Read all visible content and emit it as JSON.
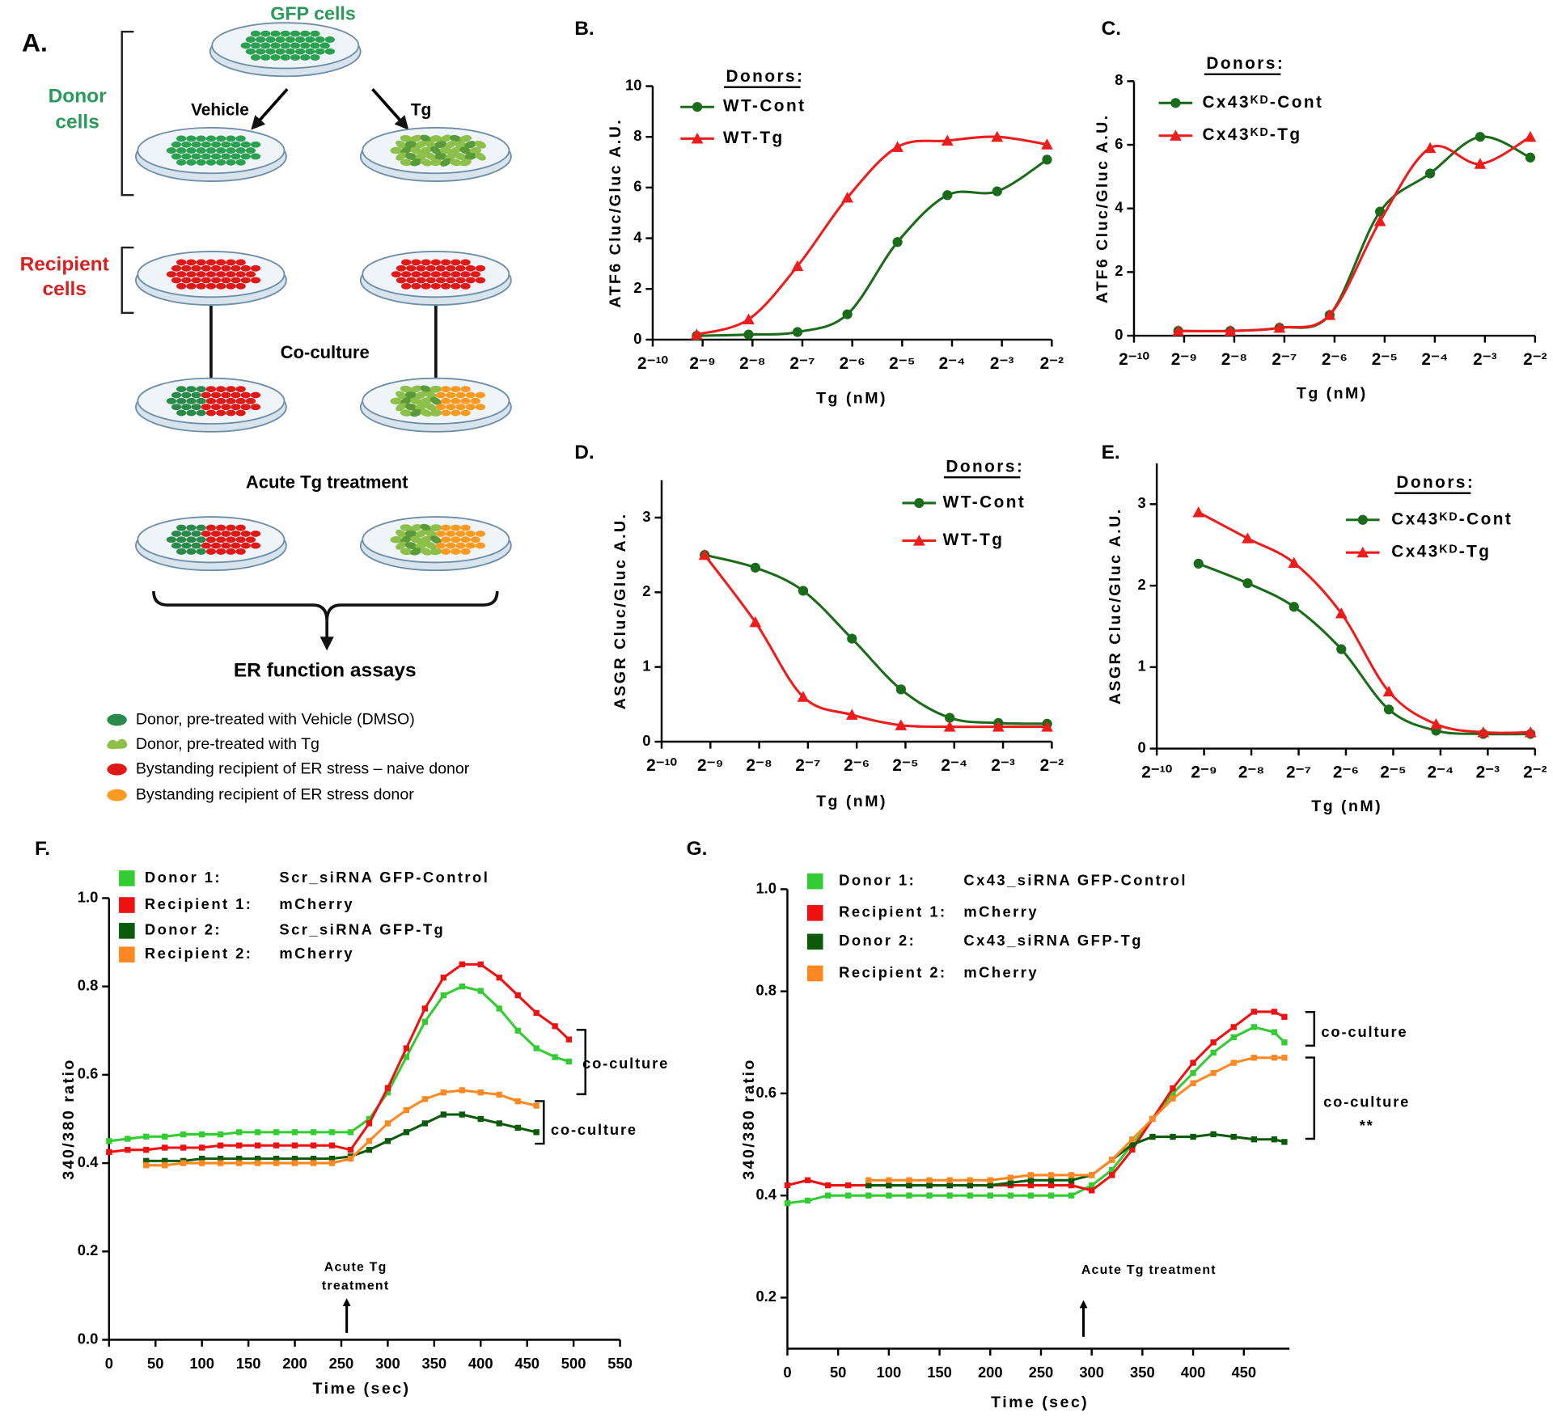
{
  "panel_a": {
    "label": "A.",
    "title": "GFP cells",
    "donor_label": [
      "Donor",
      "cells"
    ],
    "arrows": [
      "Vehicle",
      "Tg"
    ],
    "recipient_label": [
      "Recipient",
      "cells"
    ],
    "steps": [
      "Co-culture",
      "Acute Tg treatment",
      "ER function assays"
    ],
    "legend": [
      "Donor, pre-treated with Vehicle (DMSO)",
      "Donor, pre-treated with Tg",
      "Bystanding recipient of ER stress – naive donor",
      "Bystanding recipient of ER stress donor"
    ]
  },
  "chart_data": [
    {
      "type": "scatter",
      "panel": "B.",
      "curve": "smooth",
      "xscale": "log2",
      "xlabel": "Tg (nM)",
      "ylabel": "ATF6 Cluc/Gluc A.U.",
      "legend_title": "Donors:",
      "xlim": [
        0.0009765625,
        0.25
      ],
      "xticks": [
        {
          "value": 0.0009765625,
          "label": "2⁻¹⁰"
        },
        {
          "value": 0.001953125,
          "label": "2⁻⁹"
        },
        {
          "value": 0.00390625,
          "label": "2⁻⁸"
        },
        {
          "value": 0.0078125,
          "label": "2⁻⁷"
        },
        {
          "value": 0.015625,
          "label": "2⁻⁶"
        },
        {
          "value": 0.03125,
          "label": "2⁻⁵"
        },
        {
          "value": 0.0625,
          "label": "2⁻⁴"
        },
        {
          "value": 0.125,
          "label": "2⁻³"
        },
        {
          "value": 0.25,
          "label": "2⁻²"
        }
      ],
      "ylim": [
        0,
        10
      ],
      "yticks": [
        0,
        2,
        4,
        6,
        8,
        10
      ],
      "x": [
        0.0018,
        0.0037,
        0.0073,
        0.0146,
        0.0293,
        0.0586,
        0.117,
        0.234
      ],
      "series": [
        {
          "name": "WT-Cont",
          "color": "#1a6b1a",
          "marker": "circle",
          "values": [
            0.15,
            0.2,
            0.3,
            1.0,
            3.85,
            5.7,
            5.85,
            7.1
          ]
        },
        {
          "name": "WT-Tg",
          "color": "#ee1c1c",
          "marker": "triangle",
          "values": [
            0.2,
            0.8,
            2.9,
            5.6,
            7.6,
            7.85,
            8.0,
            7.7
          ]
        }
      ]
    },
    {
      "type": "scatter",
      "panel": "C.",
      "curve": "smooth",
      "xscale": "log2",
      "xlabel": "Tg (nM)",
      "ylabel": "ATF6 Cluc/Gluc A.U.",
      "legend_title": "Donors:",
      "xlim": [
        0.0009765625,
        0.25
      ],
      "xticks": [
        {
          "value": 0.0009765625,
          "label": "2⁻¹⁰"
        },
        {
          "value": 0.001953125,
          "label": "2⁻⁹"
        },
        {
          "value": 0.00390625,
          "label": "2⁻⁸"
        },
        {
          "value": 0.0078125,
          "label": "2⁻⁷"
        },
        {
          "value": 0.015625,
          "label": "2⁻⁶"
        },
        {
          "value": 0.03125,
          "label": "2⁻⁵"
        },
        {
          "value": 0.0625,
          "label": "2⁻⁴"
        },
        {
          "value": 0.125,
          "label": "2⁻³"
        },
        {
          "value": 0.25,
          "label": "2⁻²"
        }
      ],
      "ylim": [
        0,
        8
      ],
      "yticks": [
        0,
        2,
        4,
        6,
        8
      ],
      "x": [
        0.0018,
        0.0037,
        0.0073,
        0.0146,
        0.0293,
        0.0586,
        0.117,
        0.234
      ],
      "series": [
        {
          "name": "Cx43ᴷᴰ-Cont",
          "color": "#1a6b1a",
          "marker": "circle",
          "values": [
            0.15,
            0.15,
            0.25,
            0.65,
            3.9,
            5.1,
            6.25,
            5.6
          ]
        },
        {
          "name": "Cx43ᴷᴰ-Tg",
          "color": "#ee1c1c",
          "marker": "triangle",
          "values": [
            0.15,
            0.15,
            0.25,
            0.65,
            3.6,
            5.9,
            5.4,
            6.25
          ]
        }
      ]
    },
    {
      "type": "scatter",
      "panel": "D.",
      "curve": "smooth",
      "xscale": "log2",
      "xlabel": "Tg (nM)",
      "ylabel": "ASGR Cluc/Gluc A.U.",
      "legend_title": "Donors:",
      "xlim": [
        0.0009765625,
        0.25
      ],
      "xticks": [
        {
          "value": 0.0009765625,
          "label": "2⁻¹⁰"
        },
        {
          "value": 0.001953125,
          "label": "2⁻⁹"
        },
        {
          "value": 0.00390625,
          "label": "2⁻⁸"
        },
        {
          "value": 0.0078125,
          "label": "2⁻⁷"
        },
        {
          "value": 0.015625,
          "label": "2⁻⁶"
        },
        {
          "value": 0.03125,
          "label": "2⁻⁵"
        },
        {
          "value": 0.0625,
          "label": "2⁻⁴"
        },
        {
          "value": 0.125,
          "label": "2⁻³"
        },
        {
          "value": 0.25,
          "label": "2⁻²"
        }
      ],
      "ylim": [
        0,
        3.5
      ],
      "yticks": [
        0,
        1,
        2,
        3
      ],
      "x": [
        0.0018,
        0.0037,
        0.0073,
        0.0146,
        0.0293,
        0.0586,
        0.117,
        0.234
      ],
      "series": [
        {
          "name": "WT-Cont",
          "color": "#1a6b1a",
          "marker": "circle",
          "values": [
            2.5,
            2.33,
            2.02,
            1.38,
            0.7,
            0.32,
            0.25,
            0.24
          ]
        },
        {
          "name": "WT-Tg",
          "color": "#ee1c1c",
          "marker": "triangle",
          "values": [
            2.5,
            1.6,
            0.6,
            0.36,
            0.22,
            0.2,
            0.2,
            0.2
          ]
        }
      ]
    },
    {
      "type": "scatter",
      "panel": "E.",
      "curve": "smooth",
      "xscale": "log2",
      "xlabel": "Tg (nM)",
      "ylabel": "ASGR Cluc/Gluc A.U.",
      "legend_title": "Donors:",
      "xlim": [
        0.0009765625,
        0.25
      ],
      "xticks": [
        {
          "value": 0.0009765625,
          "label": "2⁻¹⁰"
        },
        {
          "value": 0.001953125,
          "label": "2⁻⁹"
        },
        {
          "value": 0.00390625,
          "label": "2⁻⁸"
        },
        {
          "value": 0.0078125,
          "label": "2⁻⁷"
        },
        {
          "value": 0.015625,
          "label": "2⁻⁶"
        },
        {
          "value": 0.03125,
          "label": "2⁻⁵"
        },
        {
          "value": 0.0625,
          "label": "2⁻⁴"
        },
        {
          "value": 0.125,
          "label": "2⁻³"
        },
        {
          "value": 0.25,
          "label": "2⁻²"
        }
      ],
      "ylim": [
        0,
        3.5
      ],
      "yticks": [
        0,
        1,
        2,
        3
      ],
      "x": [
        0.0018,
        0.0037,
        0.0073,
        0.0146,
        0.0293,
        0.0586,
        0.117,
        0.234
      ],
      "series": [
        {
          "name": "Cx43ᴷᴰ-Cont",
          "color": "#1a6b1a",
          "marker": "circle",
          "values": [
            2.27,
            2.03,
            1.74,
            1.22,
            0.48,
            0.22,
            0.18,
            0.18
          ]
        },
        {
          "name": "Cx43ᴷᴰ-Tg",
          "color": "#ee1c1c",
          "marker": "triangle",
          "values": [
            2.9,
            2.58,
            2.28,
            1.66,
            0.7,
            0.3,
            0.2,
            0.2
          ]
        }
      ]
    },
    {
      "type": "line",
      "panel": "F.",
      "xlabel": "Time (sec)",
      "ylabel": "340/380 ratio",
      "xlim": [
        0,
        550
      ],
      "xticks": [
        0,
        50,
        100,
        150,
        200,
        250,
        300,
        350,
        400,
        450,
        500,
        550
      ],
      "ylim": [
        0,
        1
      ],
      "yticks": [
        {
          "value": 0,
          "label": "0.0"
        },
        0.2,
        0.4,
        0.6,
        0.8,
        {
          "value": 1,
          "label": "1.0"
        }
      ],
      "series": [
        {
          "name": "Donor 1:",
          "description": "Scr_siRNA GFP-Control",
          "color": "#33cc33",
          "x": [
            0,
            20,
            40,
            60,
            80,
            100,
            120,
            140,
            160,
            180,
            200,
            220,
            240,
            260,
            280,
            300,
            320,
            340,
            360,
            380,
            400,
            420,
            440,
            460,
            480,
            495
          ],
          "values": [
            0.45,
            0.455,
            0.46,
            0.46,
            0.465,
            0.465,
            0.465,
            0.47,
            0.47,
            0.47,
            0.47,
            0.47,
            0.47,
            0.47,
            0.5,
            0.56,
            0.64,
            0.72,
            0.78,
            0.8,
            0.79,
            0.75,
            0.7,
            0.66,
            0.64,
            0.63
          ]
        },
        {
          "name": "Recipient 1:",
          "description": "mCherry",
          "color": "#ee1111",
          "x": [
            0,
            20,
            40,
            60,
            80,
            100,
            120,
            140,
            160,
            180,
            200,
            220,
            240,
            260,
            280,
            300,
            320,
            340,
            360,
            380,
            400,
            420,
            440,
            460,
            480,
            495
          ],
          "values": [
            0.425,
            0.43,
            0.43,
            0.435,
            0.435,
            0.435,
            0.44,
            0.44,
            0.44,
            0.44,
            0.44,
            0.44,
            0.44,
            0.43,
            0.49,
            0.57,
            0.66,
            0.75,
            0.82,
            0.85,
            0.85,
            0.82,
            0.78,
            0.74,
            0.71,
            0.68
          ]
        },
        {
          "name": "Donor 2:",
          "description": "Scr_siRNA GFP-Tg",
          "color": "#0a5a0a",
          "x": [
            40,
            60,
            80,
            100,
            120,
            140,
            160,
            180,
            200,
            220,
            240,
            260,
            280,
            300,
            320,
            340,
            360,
            380,
            400,
            420,
            440,
            460
          ],
          "values": [
            0.405,
            0.405,
            0.405,
            0.41,
            0.41,
            0.41,
            0.41,
            0.41,
            0.41,
            0.41,
            0.41,
            0.415,
            0.43,
            0.45,
            0.47,
            0.49,
            0.51,
            0.51,
            0.5,
            0.49,
            0.48,
            0.47
          ]
        },
        {
          "name": "Recipient 2:",
          "description": "mCherry",
          "color": "#ff8822",
          "x": [
            40,
            60,
            80,
            100,
            120,
            140,
            160,
            180,
            200,
            220,
            240,
            260,
            280,
            300,
            320,
            340,
            360,
            380,
            400,
            420,
            440,
            460
          ],
          "values": [
            0.395,
            0.395,
            0.4,
            0.4,
            0.4,
            0.4,
            0.4,
            0.4,
            0.4,
            0.4,
            0.4,
            0.41,
            0.45,
            0.49,
            0.52,
            0.545,
            0.56,
            0.565,
            0.56,
            0.555,
            0.54,
            0.53
          ]
        }
      ],
      "annotations": [
        {
          "lines": [
            "co-culture"
          ]
        },
        {
          "lines": [
            "co-culture"
          ]
        },
        {
          "lines": [
            "Acute Tg",
            "treatment"
          ]
        }
      ]
    },
    {
      "type": "line",
      "panel": "G.",
      "xlabel": "Time (sec)",
      "ylabel": "340/380 ratio",
      "xlim": [
        0,
        495
      ],
      "xticks": [
        0,
        50,
        100,
        150,
        200,
        250,
        300,
        350,
        400,
        450
      ],
      "ylim": [
        0.1,
        1
      ],
      "yticks": [
        0.2,
        0.4,
        0.6,
        0.8,
        {
          "value": 1,
          "label": "1.0"
        }
      ],
      "series": [
        {
          "name": "Donor 1:",
          "description": "Cx43_siRNA GFP-Control",
          "color": "#33cc33",
          "x": [
            0,
            20,
            40,
            60,
            80,
            100,
            120,
            140,
            160,
            180,
            200,
            220,
            240,
            260,
            280,
            300,
            320,
            340,
            360,
            380,
            400,
            420,
            440,
            460,
            480,
            490
          ],
          "values": [
            0.385,
            0.39,
            0.4,
            0.4,
            0.4,
            0.4,
            0.4,
            0.4,
            0.4,
            0.4,
            0.4,
            0.4,
            0.4,
            0.4,
            0.4,
            0.42,
            0.45,
            0.5,
            0.55,
            0.6,
            0.64,
            0.68,
            0.71,
            0.73,
            0.72,
            0.7
          ]
        },
        {
          "name": "Recipient 1:",
          "description": "mCherry",
          "color": "#ee1111",
          "x": [
            0,
            20,
            40,
            60,
            80,
            100,
            120,
            140,
            160,
            180,
            200,
            220,
            240,
            260,
            280,
            300,
            320,
            340,
            360,
            380,
            400,
            420,
            440,
            460,
            480,
            490
          ],
          "values": [
            0.42,
            0.43,
            0.42,
            0.42,
            0.42,
            0.42,
            0.42,
            0.42,
            0.42,
            0.42,
            0.42,
            0.42,
            0.42,
            0.42,
            0.42,
            0.41,
            0.44,
            0.49,
            0.55,
            0.61,
            0.66,
            0.7,
            0.73,
            0.76,
            0.76,
            0.75
          ]
        },
        {
          "name": "Donor 2:",
          "description": "Cx43_siRNA GFP-Tg",
          "color": "#0a5a0a",
          "x": [
            80,
            100,
            120,
            140,
            160,
            180,
            200,
            220,
            240,
            260,
            280,
            300,
            320,
            340,
            360,
            380,
            400,
            420,
            440,
            460,
            480,
            490
          ],
          "values": [
            0.42,
            0.42,
            0.42,
            0.42,
            0.42,
            0.42,
            0.42,
            0.425,
            0.43,
            0.43,
            0.43,
            0.44,
            0.47,
            0.5,
            0.515,
            0.515,
            0.515,
            0.52,
            0.515,
            0.51,
            0.51,
            0.505
          ]
        },
        {
          "name": "Recipient 2:",
          "description": "mCherry",
          "color": "#ff8822",
          "x": [
            80,
            100,
            120,
            140,
            160,
            180,
            200,
            220,
            240,
            260,
            280,
            300,
            320,
            340,
            360,
            380,
            400,
            420,
            440,
            460,
            480,
            490
          ],
          "values": [
            0.43,
            0.43,
            0.43,
            0.43,
            0.43,
            0.43,
            0.43,
            0.435,
            0.44,
            0.44,
            0.44,
            0.44,
            0.47,
            0.51,
            0.55,
            0.59,
            0.62,
            0.64,
            0.66,
            0.67,
            0.67,
            0.67
          ]
        }
      ],
      "annotations": [
        {
          "lines": [
            "co-culture"
          ]
        },
        {
          "lines": [
            "co-culture",
            "**"
          ]
        },
        {
          "lines": [
            "Acute Tg treatment"
          ]
        }
      ]
    }
  ]
}
